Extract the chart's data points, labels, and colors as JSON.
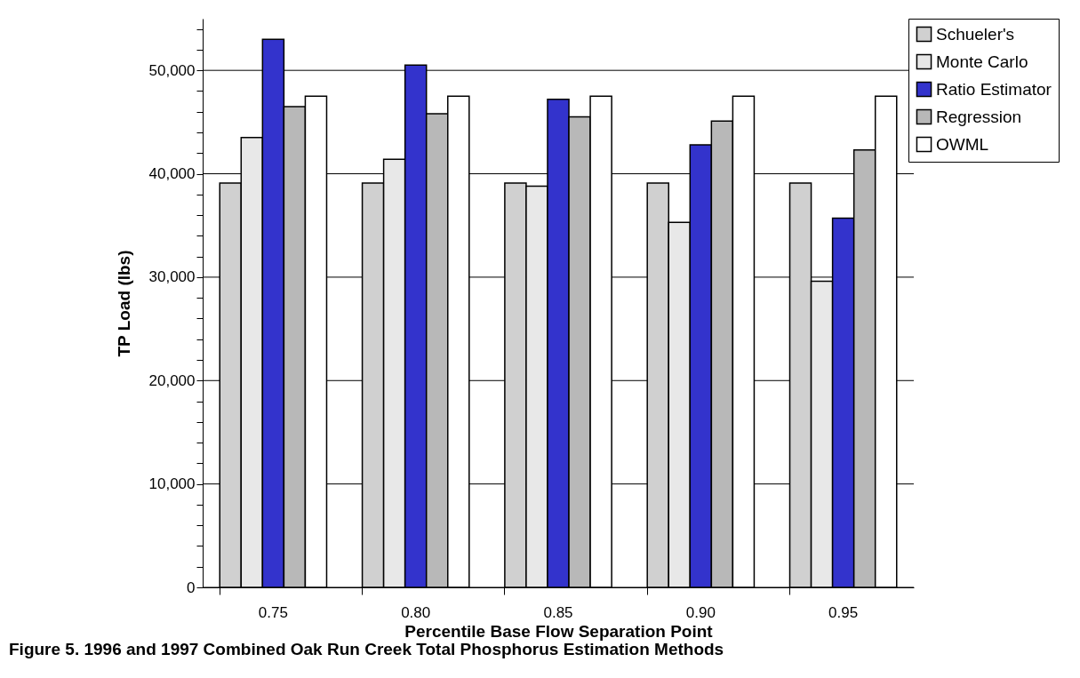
{
  "chart_data": {
    "type": "bar",
    "xlabel": "Percentile Base Flow Separation Point",
    "ylabel": "TP Load (lbs)",
    "categories": [
      "0.75",
      "0.80",
      "0.85",
      "0.90",
      "0.95"
    ],
    "series": [
      {
        "name": "Schueler's",
        "color": "#d0d0d0",
        "values": [
          39100,
          39100,
          39100,
          39100,
          39100
        ]
      },
      {
        "name": "Monte Carlo",
        "color": "#e8e8e8",
        "values": [
          43500,
          41400,
          38800,
          35300,
          29600
        ]
      },
      {
        "name": "Ratio Estimator",
        "color": "#3333cc",
        "values": [
          53000,
          50500,
          47200,
          42800,
          35700
        ]
      },
      {
        "name": "Regression",
        "color": "#b8b8b8",
        "values": [
          46500,
          45800,
          45500,
          45100,
          42300
        ]
      },
      {
        "name": "OWML",
        "color": "#ffffff",
        "values": [
          47500,
          47500,
          47500,
          47500,
          47500
        ]
      }
    ],
    "ylim": [
      0,
      55000
    ],
    "yticks": [
      0,
      {
        "value": 2000,
        "label": null
      },
      {
        "value": 4000,
        "label": null
      },
      {
        "value": 6000,
        "label": null
      },
      {
        "value": 8000,
        "label": null
      },
      {
        "value": 10000,
        "label": "10,000"
      },
      {
        "value": 12000,
        "label": null
      },
      {
        "value": 14000,
        "label": null
      },
      {
        "value": 16000,
        "label": null
      },
      {
        "value": 18000,
        "label": null
      },
      {
        "value": 20000,
        "label": "20,000"
      },
      {
        "value": 22000,
        "label": null
      },
      {
        "value": 24000,
        "label": null
      },
      {
        "value": 26000,
        "label": null
      },
      {
        "value": 28000,
        "label": null
      },
      {
        "value": 30000,
        "label": "30,000"
      },
      {
        "value": 32000,
        "label": null
      },
      {
        "value": 34000,
        "label": null
      },
      {
        "value": 36000,
        "label": null
      },
      {
        "value": 38000,
        "label": null
      },
      {
        "value": 40000,
        "label": "40,000"
      },
      {
        "value": 42000,
        "label": null
      },
      {
        "value": 44000,
        "label": null
      },
      {
        "value": 46000,
        "label": null
      },
      {
        "value": 48000,
        "label": null
      },
      {
        "value": 50000,
        "label": "50,000"
      },
      {
        "value": 52000,
        "label": null
      },
      {
        "value": 54000,
        "label": null
      }
    ],
    "grid": "y",
    "legend": "right",
    "annotations": [
      "Figure 5. 1996 and 1997 Combined Oak Run Creek Total Phosphorus Estimation Methods"
    ]
  }
}
